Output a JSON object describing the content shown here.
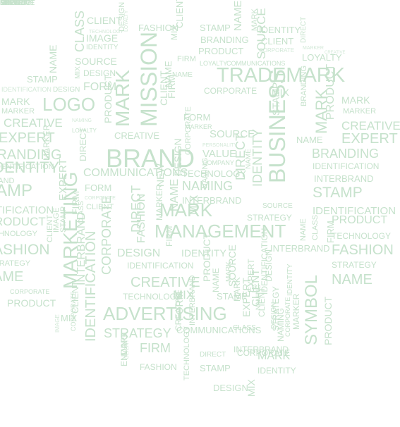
{
  "colors": {
    "background": "#ffffff",
    "ink": "#c6e2cc",
    "ink_light": "#d3e9d8"
  },
  "words": [
    {
      "t": "CLIENT"
    },
    {
      "t": "TECHNOLOGY"
    },
    {
      "t": "CLASS"
    },
    {
      "t": "IMAGE"
    },
    {
      "t": "IDENTITY"
    },
    {
      "t": "DESIGN"
    },
    {
      "t": "LOYALTY"
    },
    {
      "t": "FASHION"
    },
    {
      "t": "MIX"
    },
    {
      "t": "CLIENT"
    },
    {
      "t": "STAMP"
    },
    {
      "t": "NAME"
    },
    {
      "t": "IDENTITY"
    },
    {
      "t": "BRANDING"
    },
    {
      "t": "MARK"
    },
    {
      "t": "DIRECT"
    },
    {
      "t": "CLIENT"
    },
    {
      "t": "PRODUCT"
    },
    {
      "t": "MARKER"
    },
    {
      "t": "CORPORATE"
    },
    {
      "t": "CREATIVE"
    },
    {
      "t": "LOYALTY"
    },
    {
      "t": "FIRM"
    },
    {
      "t": "SOURCE"
    },
    {
      "t": "NAME"
    },
    {
      "t": "SOURCE"
    },
    {
      "t": "MIX"
    },
    {
      "t": "LOYALTY"
    },
    {
      "t": "COMMUNICATIONS"
    },
    {
      "t": "MISSION"
    },
    {
      "t": "MARK"
    },
    {
      "t": "STAMP"
    },
    {
      "t": "DESIGN"
    },
    {
      "t": "TRADEMARK"
    },
    {
      "t": "IDENTIFICATION"
    },
    {
      "t": "DESIGN"
    },
    {
      "t": "FORM"
    },
    {
      "t": "NAME"
    },
    {
      "t": "MARK"
    },
    {
      "t": "LOGO"
    },
    {
      "t": "MARKER"
    },
    {
      "t": "CORPORATE"
    },
    {
      "t": "MIX"
    },
    {
      "t": "MARK"
    },
    {
      "t": "MARKER"
    },
    {
      "t": "CREATIVE"
    },
    {
      "t": "NAMING"
    },
    {
      "t": "LOYALTY"
    },
    {
      "t": "PRODUCT"
    },
    {
      "t": "CREATIVE"
    },
    {
      "t": "FORM"
    },
    {
      "t": "MARKER"
    },
    {
      "t": "SOURCE"
    },
    {
      "t": "STAMP"
    },
    {
      "t": "BUSINESS"
    },
    {
      "t": "BRANDING"
    },
    {
      "t": "MARK"
    },
    {
      "t": "EXPERT"
    },
    {
      "t": "PRODUCT"
    },
    {
      "t": "EXPERT"
    },
    {
      "t": "CREATIVE"
    },
    {
      "t": "BRAND"
    },
    {
      "t": "VALUE"
    },
    {
      "t": "NAME"
    },
    {
      "t": "BRANDING"
    },
    {
      "t": "BRANDING"
    },
    {
      "t": "COMPANY"
    },
    {
      "t": "PERSONALITY"
    },
    {
      "t": "IDENTIFICATION"
    },
    {
      "t": "IDENTIFICATION"
    },
    {
      "t": "COMMUNICATIONS"
    },
    {
      "t": "TECHNOLOGY"
    },
    {
      "t": "BRAND"
    },
    {
      "t": "NAMING"
    },
    {
      "t": "INTERBRAND"
    },
    {
      "t": "AMP"
    },
    {
      "t": "FORM"
    },
    {
      "t": "STAMP"
    },
    {
      "t": "CORPORATE"
    },
    {
      "t": "INTERBRAND"
    },
    {
      "t": "IDENTITY"
    },
    {
      "t": "TIFICATION"
    },
    {
      "t": "CLIENT"
    },
    {
      "t": "MARK"
    },
    {
      "t": "SOURCE"
    },
    {
      "t": "IDENTIFICATION"
    },
    {
      "t": "RODUCT"
    },
    {
      "t": "STRATEGY"
    },
    {
      "t": "PRODUCT"
    },
    {
      "t": "CHNOLOGY"
    },
    {
      "t": "MANAGEMENT"
    },
    {
      "t": "TECHNOLOGY"
    },
    {
      "t": "ASHION"
    },
    {
      "t": "INTERBRAND"
    },
    {
      "t": "FASHION"
    },
    {
      "t": "TRATEGY"
    },
    {
      "t": "DESIGN"
    },
    {
      "t": "IDENTITY"
    },
    {
      "t": "STRATEGY"
    },
    {
      "t": "AME"
    },
    {
      "t": "IDENTIFICATION"
    },
    {
      "t": "NAME"
    },
    {
      "t": "CREATIVE"
    },
    {
      "t": "CORPORATE"
    },
    {
      "t": "TECHNOLOGY"
    },
    {
      "t": "MIX"
    },
    {
      "t": "STAMP"
    },
    {
      "t": "PRODUCT"
    },
    {
      "t": "MIX"
    },
    {
      "t": "ADVERTISING"
    },
    {
      "t": "STRATEGY"
    },
    {
      "t": "COMMUNICATIONS"
    },
    {
      "t": "CLASS"
    },
    {
      "t": "INTERBRAND"
    },
    {
      "t": "FIRM"
    },
    {
      "t": "DIRECT"
    },
    {
      "t": "MARK"
    },
    {
      "t": "FASHION"
    },
    {
      "t": "STAMP"
    },
    {
      "t": "IDENTITY"
    },
    {
      "t": "MARKETING"
    },
    {
      "t": "IDENTIFICATION"
    },
    {
      "t": "CORPORATE"
    },
    {
      "t": "DIRECT"
    },
    {
      "t": "FASHION"
    },
    {
      "t": "MARKER"
    },
    {
      "t": "NAME"
    },
    {
      "t": "IMAGE"
    },
    {
      "t": "SYMBOL"
    },
    {
      "t": "IDENTITY"
    },
    {
      "t": "NAMING"
    },
    {
      "t": "CLIENT"
    },
    {
      "t": "PRODUCT"
    },
    {
      "t": "DESIGN"
    },
    {
      "t": "CORPORATE"
    },
    {
      "t": "STRATEGY"
    },
    {
      "t": "DESIGN"
    },
    {
      "t": "MARKER"
    },
    {
      "t": "SOURCE"
    },
    {
      "t": "NAME"
    },
    {
      "t": "CLIENT"
    },
    {
      "t": "MARKER"
    },
    {
      "t": "DIRECT"
    },
    {
      "t": "CLASS"
    },
    {
      "t": "CLIENT"
    },
    {
      "t": "EXPERT"
    },
    {
      "t": "FIRM"
    },
    {
      "t": "IMAGE"
    },
    {
      "t": "NAME"
    },
    {
      "t": "MARK"
    },
    {
      "t": "NEW"
    },
    {
      "t": "NAME"
    },
    {
      "t": "MIX"
    },
    {
      "t": "PRODUCT"
    },
    {
      "t": "CLASS"
    },
    {
      "t": "DIRECT"
    },
    {
      "t": "MARK"
    },
    {
      "t": "EXPERT"
    },
    {
      "t": "NAMING"
    },
    {
      "t": "DESIGN"
    },
    {
      "t": "NAMING"
    },
    {
      "t": "FIRM"
    },
    {
      "t": "CORPORATE"
    },
    {
      "t": "IDENTITY"
    },
    {
      "t": "CLIENT"
    },
    {
      "t": "INTERBRAND"
    },
    {
      "t": "CORPORATE"
    },
    {
      "t": "EXPERT"
    },
    {
      "t": "TECHNOLOGY"
    },
    {
      "t": "FORM"
    },
    {
      "t": "FIRM"
    },
    {
      "t": "CREATIVE"
    },
    {
      "t": "ENDING"
    },
    {
      "t": "MARK"
    },
    {
      "t": "MIX"
    },
    {
      "t": "INTERBRAND"
    },
    {
      "t": "IDENTIFICATION"
    },
    {
      "t": "CLIENT"
    },
    {
      "t": "FIRM"
    },
    {
      "t": "STAMP"
    },
    {
      "t": "CLIENT"
    },
    {
      "t": "DESIGN"
    },
    {
      "t": "CORPORATE"
    },
    {
      "t": "NAME"
    },
    {
      "t": "PRODUCT"
    },
    {
      "t": "IDENTITY"
    },
    {
      "t": "LOYALTY"
    },
    {
      "t": "PRODUCT"
    },
    {
      "t": "EXPERT"
    },
    {
      "t": "MIX"
    },
    {
      "t": "STAMP"
    },
    {
      "t": "MIX"
    },
    {
      "t": "CREATIVE"
    }
  ]
}
